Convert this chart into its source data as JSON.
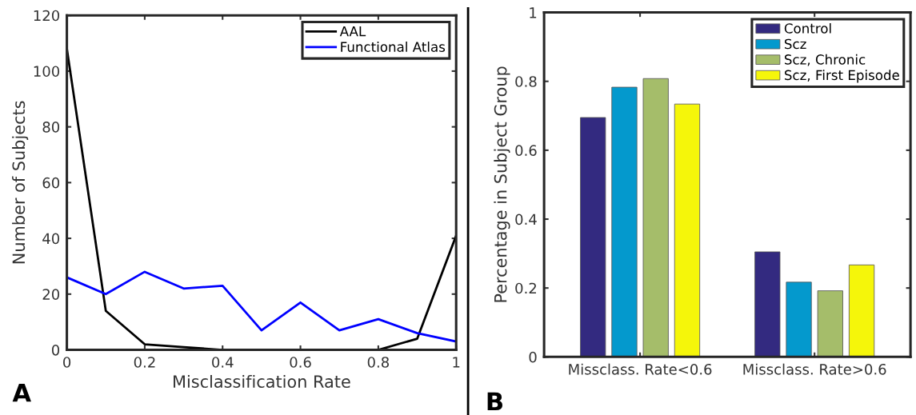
{
  "chart_data": [
    {
      "type": "line",
      "xlabel": "Misclassification Rate",
      "ylabel": "Number of Subjects",
      "x": [
        0,
        0.1,
        0.2,
        0.3,
        0.4,
        0.5,
        0.6,
        0.7,
        0.8,
        0.9,
        1
      ],
      "series": [
        {
          "name": "AAL",
          "color": "#000000",
          "values": [
            108,
            14,
            2,
            1,
            0,
            0,
            0,
            0,
            0,
            4,
            41
          ]
        },
        {
          "name": "Functional Atlas",
          "color": "#0000ff",
          "values": [
            26,
            20,
            28,
            22,
            23,
            7,
            17,
            7,
            11,
            6,
            3
          ]
        }
      ],
      "xlim": [
        0,
        1
      ],
      "xticks": [
        0,
        0.2,
        0.4,
        0.6,
        0.8,
        1
      ],
      "ylim": [
        0,
        120
      ],
      "yticks": [
        0,
        20,
        40,
        60,
        80,
        100,
        120
      ],
      "legend": "top right",
      "grid": false,
      "annotations": [
        "A"
      ]
    },
    {
      "type": "bar",
      "ylabel": "Percentage in Subject Group",
      "categories": [
        "Missclass. Rate<0.6",
        "Missclass. Rate>0.6"
      ],
      "series": [
        {
          "name": "Control",
          "color": "#332a80",
          "values": [
            0.695,
            0.305
          ]
        },
        {
          "name": "Scz",
          "color": "#0499cd",
          "values": [
            0.783,
            0.217
          ]
        },
        {
          "name": "Scz, Chronic",
          "color": "#a5bd6a",
          "values": [
            0.808,
            0.192
          ]
        },
        {
          "name": "Scz, First Episode",
          "color": "#f5f60a",
          "values": [
            0.734,
            0.267
          ]
        }
      ],
      "ylim": [
        0,
        1
      ],
      "yticks": [
        0,
        0.2,
        0.4,
        0.6,
        0.8,
        1
      ],
      "legend": "top right",
      "grid": false,
      "annotations": [
        "B"
      ]
    }
  ]
}
